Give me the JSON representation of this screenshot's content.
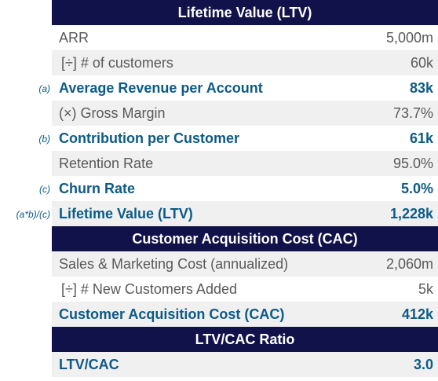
{
  "sections": [
    {
      "title": "Lifetime Value (LTV)",
      "rows": [
        {
          "label": "ARR",
          "value": "5,000m",
          "note": "",
          "bold": false,
          "indent": false
        },
        {
          "label": "[÷] # of customers",
          "value": "60k",
          "note": "",
          "bold": false,
          "indent": true
        },
        {
          "label": "Average Revenue per Account",
          "value": "83k",
          "note": "(a)",
          "bold": true,
          "indent": false
        },
        {
          "label": "(×) Gross Margin",
          "value": "73.7%",
          "note": "",
          "bold": false,
          "indent": false
        },
        {
          "label": "Contribution per Customer",
          "value": "61k",
          "note": "(b)",
          "bold": true,
          "indent": false
        },
        {
          "label": "Retention Rate",
          "value": "95.0%",
          "note": "",
          "bold": false,
          "indent": false
        },
        {
          "label": "Churn Rate",
          "value": "5.0%",
          "note": "(c)",
          "bold": true,
          "indent": false
        },
        {
          "label": "Lifetime Value (LTV)",
          "value": "1,228k",
          "note": "(a*b)/(c)",
          "bold": true,
          "indent": false
        }
      ]
    },
    {
      "title": "Customer Acquisition Cost (CAC)",
      "rows": [
        {
          "label": "Sales & Marketing Cost (annualized)",
          "value": "2,060m",
          "note": "",
          "bold": false,
          "indent": false
        },
        {
          "label": "[÷] # New Customers Added",
          "value": "5k",
          "note": "",
          "bold": false,
          "indent": true
        },
        {
          "label": "Customer Acquisition Cost (CAC)",
          "value": "412k",
          "note": "",
          "bold": true,
          "indent": false
        }
      ]
    },
    {
      "title": "LTV/CAC Ratio",
      "rows": [
        {
          "label": "LTV/CAC",
          "value": "3.0",
          "note": "",
          "bold": true,
          "indent": false
        }
      ]
    }
  ],
  "colors": {
    "header_bg": "#12124a",
    "highlight_text": "#0e5a86",
    "normal_text": "#595959",
    "shade": "#f0f0f0"
  }
}
